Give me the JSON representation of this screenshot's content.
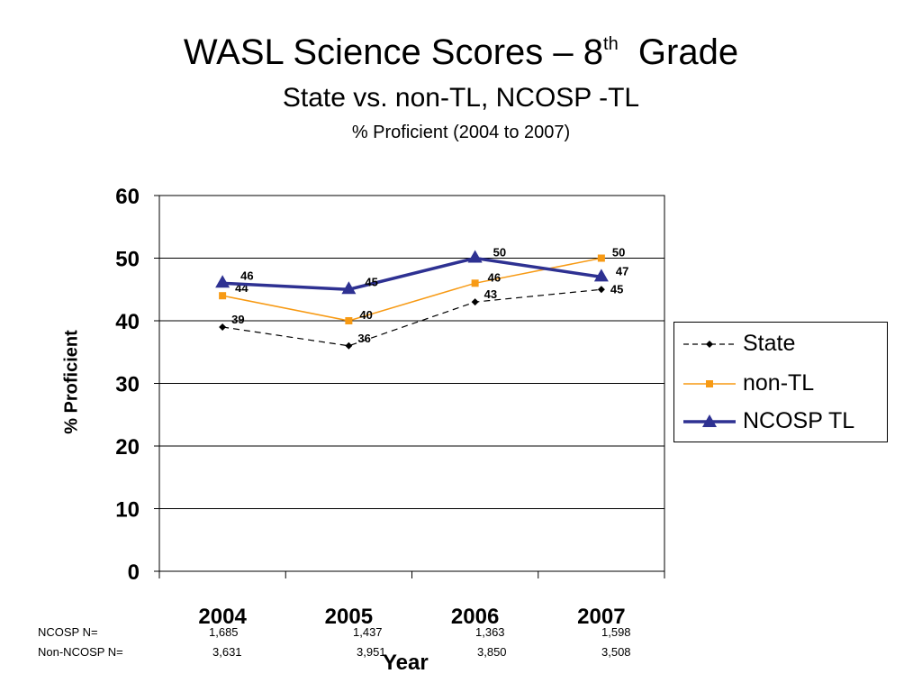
{
  "titles": {
    "main_prefix": "WASL Science Scores – 8",
    "main_sup": "th",
    "main_suffix": "  Grade",
    "sub": "State vs. non-TL, NCOSP -TL",
    "sub2": "% Proficient (2004 to 2007)"
  },
  "chart_data": {
    "type": "line",
    "title": "WASL Science Scores – 8th Grade",
    "subtitle": "State vs. non-TL, NCOSP -TL",
    "subtitle2": "% Proficient (2004 to 2007)",
    "xlabel": "Year",
    "ylabel": "% Proficient",
    "categories": [
      "2004",
      "2005",
      "2006",
      "2007"
    ],
    "ylim": [
      0,
      60
    ],
    "yticks": [
      0,
      10,
      20,
      30,
      40,
      50,
      60
    ],
    "grid": "horizontal",
    "legend_position": "right",
    "series": [
      {
        "name": "State",
        "values": [
          39,
          36,
          43,
          45
        ],
        "labels": [
          "39",
          "36",
          "43",
          "45"
        ],
        "color": "#000000",
        "style": "dashed",
        "marker": "diamond"
      },
      {
        "name": "non-TL",
        "values": [
          44,
          40,
          46,
          50
        ],
        "labels": [
          "44",
          "40",
          "46",
          "50"
        ],
        "color": "#F79A14",
        "style": "solid",
        "marker": "square"
      },
      {
        "name": "NCOSP TL",
        "values": [
          46,
          45,
          50,
          47
        ],
        "labels": [
          "46",
          "45",
          "50",
          "47"
        ],
        "color": "#2E3192",
        "style": "solid-thick",
        "marker": "triangle"
      }
    ]
  },
  "n_table": {
    "rows": [
      {
        "label": "NCOSP        N=",
        "values": [
          "1,685",
          "1,437",
          "1,363",
          "1,598"
        ]
      },
      {
        "label": "Non-NCOSP N=",
        "values": [
          "3,631",
          "3,951",
          "3,850",
          "3,508"
        ]
      }
    ]
  }
}
